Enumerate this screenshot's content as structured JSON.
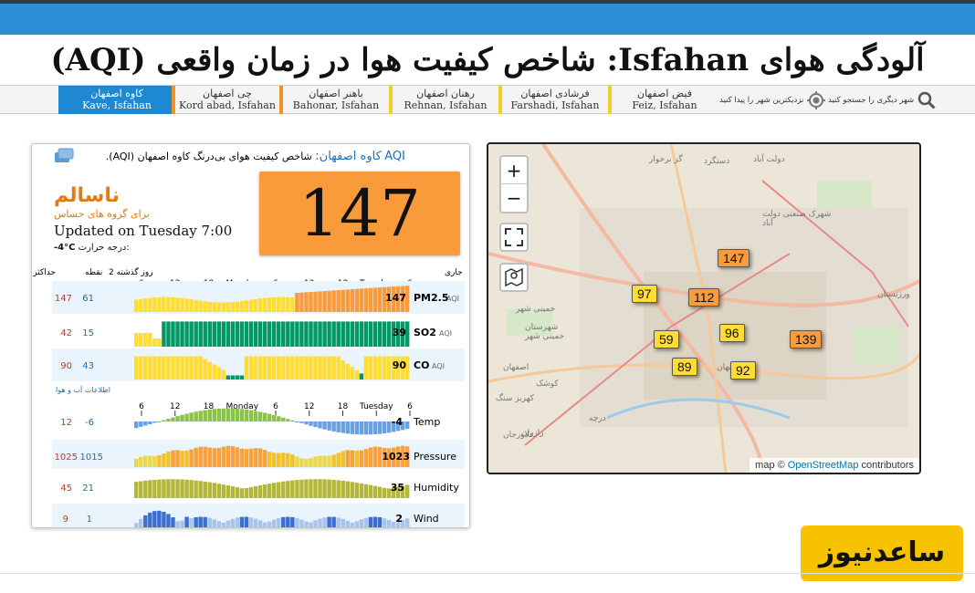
{
  "page_title": "آلودگی هوای Isfahan: شاخص کیفیت هوا در زمان واقعی (AQI)",
  "tabs": [
    {
      "fa": "کاوه اصفهان",
      "en": "Kave, Isfahan"
    },
    {
      "fa": "چی اصفهان",
      "en": "Kord abad, Isfahan"
    },
    {
      "fa": "باهنر اصفهان",
      "en": "Bahonar, Isfahan"
    },
    {
      "fa": "رهنان اصفهان",
      "en": "Rehnan, Isfahan"
    },
    {
      "fa": "فرشادی اصفهان",
      "en": "Farshadi, Isfahan"
    },
    {
      "fa": "فیض اصفهان",
      "en": "Feiz, Isfahan"
    }
  ],
  "tools": {
    "nearest": "نزدیکترین شهر را پیدا کنید",
    "search": "شهر دیگری را جستجو کنید"
  },
  "station": {
    "head_aqi": "AQI",
    "head_station": "کاوه اصفهان:",
    "head_desc": "شاخص کیفیت هوای بی‌درنگ کاوه اصفهان (AQI).",
    "status": "ناسالم",
    "status_sub": "برای گروه های حساس",
    "updated": "Updated on Tuesday 7:00",
    "temp_label": "درجه حرارت:",
    "temp_value": "-4°C",
    "aqi": "147"
  },
  "pollutants_header": {
    "current": "جاری",
    "history": "2 روز گذشته",
    "min": "نقطه",
    "max": "حداکثر"
  },
  "time_axis": [
    "6",
    "12",
    "18",
    "Monday",
    "6",
    "12",
    "18",
    "Tuesday",
    "6"
  ],
  "weather_header": "اطلاعات آب و هوا",
  "pollutants": [
    {
      "name": "PM2.5",
      "unit": "AQI",
      "current": "147",
      "min": "61",
      "max": "147"
    },
    {
      "name": "SO2",
      "unit": "AQI",
      "current": "39",
      "min": "15",
      "max": "42"
    },
    {
      "name": "CO",
      "unit": "AQI",
      "current": "90",
      "min": "43",
      "max": "90"
    }
  ],
  "weather": [
    {
      "name": "Temp",
      "current": "-4",
      "min": "-6",
      "max": "12"
    },
    {
      "name": "Pressure",
      "current": "1023",
      "min": "1015",
      "max": "1025"
    },
    {
      "name": "Humidity",
      "current": "35",
      "min": "21",
      "max": "45"
    },
    {
      "name": "Wind",
      "current": "2",
      "min": "1",
      "max": "9"
    }
  ],
  "map": {
    "zoom_in": "+",
    "zoom_out": "−",
    "attribution_prefix": "map ©",
    "attribution_link": "OpenStreetMap",
    "attribution_suffix": "contributors",
    "markers": [
      {
        "value": "147",
        "color": "#f99b3a"
      },
      {
        "value": "97",
        "color": "#ffdd33"
      },
      {
        "value": "112",
        "color": "#f99b3a"
      },
      {
        "value": "96",
        "color": "#ffdd33"
      },
      {
        "value": "59",
        "color": "#ffdd33"
      },
      {
        "value": "139",
        "color": "#f99b3a"
      },
      {
        "value": "89",
        "color": "#ffdd33"
      },
      {
        "value": "92",
        "color": "#ffdd33"
      }
    ],
    "labels": [
      "گز برخوار",
      "دستگرد",
      "دولت آباد",
      "شهرک صنعتی دولت آباد",
      "خمینی شهر",
      "شهرستان خمینی شهر",
      "اصفهان",
      "کوشک",
      "کهریز سنگ",
      "درچه",
      "زازران",
      "فلاورجان",
      "اصفهان",
      "ورزنستان"
    ]
  },
  "logo_text": "ساعدنیوز",
  "colors": {
    "accent": "#2b8fd6",
    "unhealthy_sensitive": "#f99b3a",
    "moderate": "#ffdd33",
    "good": "#009966"
  }
}
